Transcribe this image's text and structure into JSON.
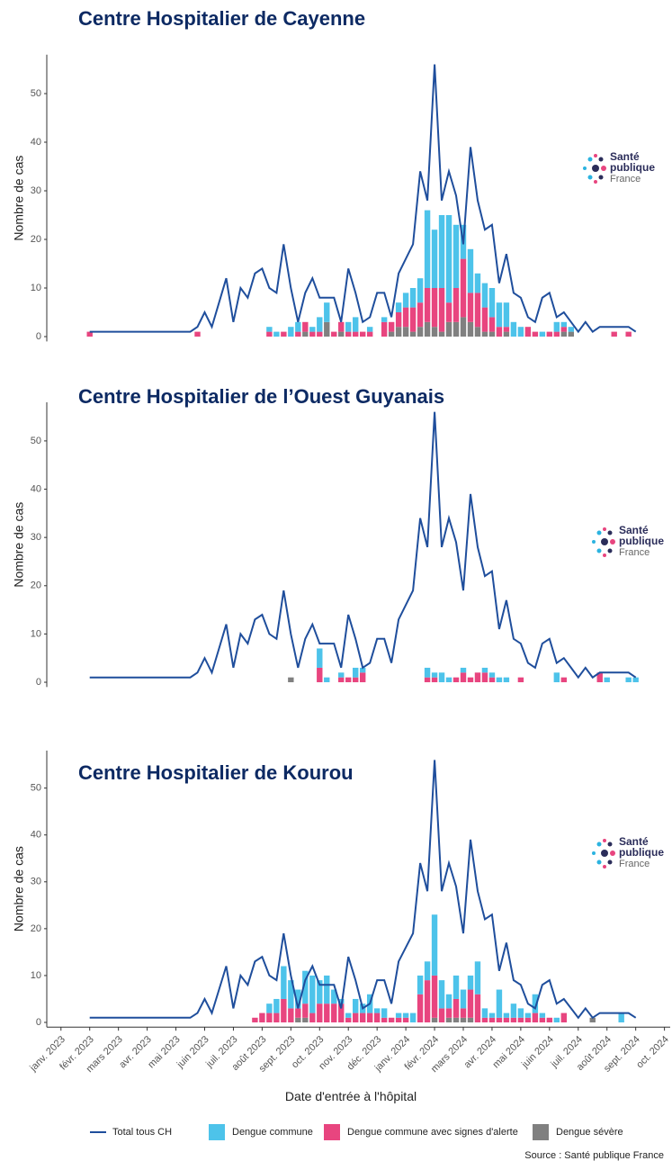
{
  "chart_data": [
    {
      "type": "bar",
      "title": "Centre Hospitalier de Cayenne",
      "y_label": "Nombre de cas",
      "x": [
        1.0,
        4.5,
        4.75,
        5,
        5.25,
        5.5,
        5.75,
        6,
        6.25,
        6.5,
        6.75,
        7,
        7.25,
        7.5,
        7.75,
        8,
        8.25,
        8.5,
        8.75,
        9,
        9.25,
        9.5,
        9.75,
        10,
        10.25,
        10.5,
        10.75,
        11,
        11.25,
        11.5,
        11.75,
        12,
        12.25,
        12.5,
        12.75,
        13,
        13.25,
        13.5,
        13.75,
        14,
        14.25,
        14.5,
        14.75,
        15,
        15.25,
        15.5,
        15.75,
        16,
        16.25,
        16.5,
        16.75,
        17,
        17.25,
        17.5,
        17.75,
        18,
        18.25,
        18.5,
        18.75,
        19,
        19.25,
        19.5,
        19.75,
        20
      ],
      "xlim": [
        -0.4,
        21.2
      ],
      "ylim": [
        -1,
        58
      ],
      "yticks": [
        0,
        10,
        20,
        30,
        40,
        50
      ],
      "series": [
        {
          "name": "Total tous CH",
          "type": "line",
          "color": "#1f4e9c",
          "values": [
            1,
            1,
            2,
            5,
            2,
            7,
            12,
            3,
            10,
            8,
            13,
            14,
            10,
            9,
            19,
            10,
            3,
            9,
            12,
            8,
            8,
            8,
            3,
            14,
            9,
            3,
            4,
            9,
            9,
            4,
            13,
            16,
            19,
            34,
            28,
            56,
            28,
            34,
            29,
            19,
            39,
            28,
            22,
            23,
            11,
            17,
            9,
            8,
            4,
            3,
            8,
            9,
            4,
            5,
            3,
            1,
            3,
            1,
            2,
            2,
            2,
            2,
            2,
            1
          ]
        },
        {
          "name": "Dengue commune",
          "type": "bar",
          "color": "#4dc3ea",
          "values": [
            0,
            0,
            0,
            0,
            0,
            0,
            0,
            0,
            0,
            0,
            0,
            0,
            1,
            1,
            0,
            2,
            2,
            0,
            1,
            3,
            4,
            0,
            0,
            2,
            3,
            0,
            1,
            0,
            1,
            0,
            2,
            3,
            4,
            5,
            16,
            12,
            15,
            18,
            13,
            7,
            9,
            4,
            5,
            6,
            5,
            5,
            3,
            2,
            0,
            0,
            1,
            0,
            2,
            1,
            1,
            0,
            0,
            0,
            0,
            0,
            0,
            0,
            0,
            0
          ]
        },
        {
          "name": "Dengue commune avec signes d'alerte",
          "type": "bar",
          "color": "#e8457f",
          "values": [
            1,
            0,
            1,
            0,
            0,
            0,
            0,
            0,
            0,
            0,
            0,
            0,
            1,
            0,
            1,
            0,
            1,
            2,
            1,
            1,
            0,
            1,
            2,
            1,
            1,
            1,
            1,
            0,
            3,
            2,
            3,
            4,
            5,
            5,
            7,
            8,
            9,
            4,
            7,
            12,
            6,
            7,
            5,
            3,
            2,
            1,
            0,
            0,
            2,
            1,
            0,
            1,
            1,
            1,
            0,
            0,
            0,
            0,
            0,
            0,
            1,
            0,
            1,
            0
          ]
        },
        {
          "name": "Dengue sévère",
          "type": "bar",
          "color": "#808080",
          "values": [
            0,
            0,
            0,
            0,
            0,
            0,
            0,
            0,
            0,
            0,
            0,
            0,
            0,
            0,
            0,
            0,
            0,
            1,
            0,
            0,
            3,
            0,
            1,
            0,
            0,
            0,
            0,
            0,
            0,
            1,
            2,
            2,
            1,
            2,
            3,
            2,
            1,
            3,
            3,
            4,
            3,
            2,
            1,
            1,
            0,
            1,
            0,
            0,
            0,
            0,
            0,
            0,
            0,
            1,
            1,
            0,
            0,
            0,
            0,
            0,
            0,
            0,
            0,
            0
          ]
        }
      ]
    },
    {
      "type": "bar",
      "title": "Centre Hospitalier de l’Ouest Guyanais",
      "y_label": "Nombre de cas",
      "x": [
        1.0,
        4.5,
        4.75,
        5,
        5.25,
        5.5,
        5.75,
        6,
        6.25,
        6.5,
        6.75,
        7,
        7.25,
        7.5,
        7.75,
        8,
        8.25,
        8.5,
        8.75,
        9,
        9.25,
        9.5,
        9.75,
        10,
        10.25,
        10.5,
        10.75,
        11,
        11.25,
        11.5,
        11.75,
        12,
        12.25,
        12.5,
        12.75,
        13,
        13.25,
        13.5,
        13.75,
        14,
        14.25,
        14.5,
        14.75,
        15,
        15.25,
        15.5,
        15.75,
        16,
        16.25,
        16.5,
        16.75,
        17,
        17.25,
        17.5,
        17.75,
        18,
        18.25,
        18.5,
        18.75,
        19,
        19.25,
        19.5,
        19.75,
        20
      ],
      "xlim": [
        -0.4,
        21.2
      ],
      "ylim": [
        -1,
        58
      ],
      "yticks": [
        0,
        10,
        20,
        30,
        40,
        50
      ],
      "series": [
        {
          "name": "Total tous CH",
          "type": "line",
          "color": "#1f4e9c",
          "values": [
            1,
            1,
            2,
            5,
            2,
            7,
            12,
            3,
            10,
            8,
            13,
            14,
            10,
            9,
            19,
            10,
            3,
            9,
            12,
            8,
            8,
            8,
            3,
            14,
            9,
            3,
            4,
            9,
            9,
            4,
            13,
            16,
            19,
            34,
            28,
            56,
            28,
            34,
            29,
            19,
            39,
            28,
            22,
            23,
            11,
            17,
            9,
            8,
            4,
            3,
            8,
            9,
            4,
            5,
            3,
            1,
            3,
            1,
            2,
            2,
            2,
            2,
            2,
            1
          ]
        },
        {
          "name": "Dengue commune",
          "type": "bar",
          "color": "#4dc3ea",
          "values": [
            0,
            0,
            0,
            0,
            0,
            0,
            0,
            0,
            0,
            0,
            0,
            0,
            0,
            0,
            0,
            0,
            0,
            0,
            0,
            4,
            1,
            0,
            1,
            0,
            2,
            1,
            0,
            0,
            0,
            0,
            0,
            0,
            0,
            0,
            2,
            1,
            2,
            1,
            0,
            1,
            0,
            0,
            1,
            1,
            1,
            1,
            0,
            0,
            0,
            0,
            0,
            0,
            2,
            0,
            0,
            0,
            0,
            0,
            0,
            1,
            0,
            0,
            1,
            1
          ]
        },
        {
          "name": "Dengue commune avec signes d'alerte",
          "type": "bar",
          "color": "#e8457f",
          "values": [
            0,
            0,
            0,
            0,
            0,
            0,
            0,
            0,
            0,
            0,
            0,
            0,
            0,
            0,
            0,
            0,
            0,
            0,
            0,
            3,
            0,
            0,
            1,
            1,
            1,
            2,
            0,
            0,
            0,
            0,
            0,
            0,
            0,
            0,
            1,
            1,
            0,
            0,
            1,
            2,
            1,
            2,
            2,
            1,
            0,
            0,
            0,
            1,
            0,
            0,
            0,
            0,
            0,
            1,
            0,
            0,
            0,
            0,
            2,
            0,
            0,
            0,
            0,
            0
          ]
        },
        {
          "name": "Dengue sévère",
          "type": "bar",
          "color": "#808080",
          "values": [
            0,
            0,
            0,
            0,
            0,
            0,
            0,
            0,
            0,
            0,
            0,
            0,
            0,
            0,
            0,
            1,
            0,
            0,
            0,
            0,
            0,
            0,
            0,
            0,
            0,
            0,
            0,
            0,
            0,
            0,
            0,
            0,
            0,
            0,
            0,
            0,
            0,
            0,
            0,
            0,
            0,
            0,
            0,
            0,
            0,
            0,
            0,
            0,
            0,
            0,
            0,
            0,
            0,
            0,
            0,
            0,
            0,
            0,
            0,
            0,
            0,
            0,
            0,
            0
          ]
        }
      ]
    },
    {
      "type": "bar",
      "title": "Centre Hospitalier de Kourou",
      "y_label": "Nombre de cas",
      "x_label": "Date d'entrée à l'hôpital",
      "x": [
        1.0,
        4.5,
        4.75,
        5,
        5.25,
        5.5,
        5.75,
        6,
        6.25,
        6.5,
        6.75,
        7,
        7.25,
        7.5,
        7.75,
        8,
        8.25,
        8.5,
        8.75,
        9,
        9.25,
        9.5,
        9.75,
        10,
        10.25,
        10.5,
        10.75,
        11,
        11.25,
        11.5,
        11.75,
        12,
        12.25,
        12.5,
        12.75,
        13,
        13.25,
        13.5,
        13.75,
        14,
        14.25,
        14.5,
        14.75,
        15,
        15.25,
        15.5,
        15.75,
        16,
        16.25,
        16.5,
        16.75,
        17,
        17.25,
        17.5,
        17.75,
        18,
        18.25,
        18.5,
        18.75,
        19,
        19.25,
        19.5,
        19.75,
        20
      ],
      "xlim": [
        -0.4,
        21.2
      ],
      "ylim": [
        -1,
        58
      ],
      "yticks": [
        0,
        10,
        20,
        30,
        40,
        50
      ],
      "xticks": [
        {
          "value": 0,
          "label": "janv. 2023"
        },
        {
          "value": 1,
          "label": "févr. 2023"
        },
        {
          "value": 2,
          "label": "mars 2023"
        },
        {
          "value": 3,
          "label": "avr. 2023"
        },
        {
          "value": 4,
          "label": "mai 2023"
        },
        {
          "value": 5,
          "label": "juin 2023"
        },
        {
          "value": 6,
          "label": "juil. 2023"
        },
        {
          "value": 7,
          "label": "août 2023"
        },
        {
          "value": 8,
          "label": "sept. 2023"
        },
        {
          "value": 9,
          "label": "oct. 2023"
        },
        {
          "value": 10,
          "label": "nov. 2023"
        },
        {
          "value": 11,
          "label": "déc. 2023"
        },
        {
          "value": 12,
          "label": "janv. 2024"
        },
        {
          "value": 13,
          "label": "févr. 2024"
        },
        {
          "value": 14,
          "label": "mars 2024"
        },
        {
          "value": 15,
          "label": "avr. 2024"
        },
        {
          "value": 16,
          "label": "mai 2024"
        },
        {
          "value": 17,
          "label": "juin 2024"
        },
        {
          "value": 18,
          "label": "juil. 2024"
        },
        {
          "value": 19,
          "label": "août 2024"
        },
        {
          "value": 20,
          "label": "sept. 2024"
        },
        {
          "value": 21,
          "label": "oct. 2024"
        }
      ],
      "series": [
        {
          "name": "Total tous CH",
          "type": "line",
          "color": "#1f4e9c",
          "values": [
            1,
            1,
            2,
            5,
            2,
            7,
            12,
            3,
            10,
            8,
            13,
            14,
            10,
            9,
            19,
            10,
            3,
            9,
            12,
            8,
            8,
            8,
            3,
            14,
            9,
            3,
            4,
            9,
            9,
            4,
            13,
            16,
            19,
            34,
            28,
            56,
            28,
            34,
            29,
            19,
            39,
            28,
            22,
            23,
            11,
            17,
            9,
            8,
            4,
            3,
            8,
            9,
            4,
            5,
            3,
            1,
            3,
            1,
            2,
            2,
            2,
            2,
            2,
            1
          ]
        },
        {
          "name": "Dengue commune",
          "type": "bar",
          "color": "#4dc3ea",
          "values": [
            0,
            0,
            0,
            0,
            0,
            0,
            0,
            0,
            0,
            0,
            0,
            0,
            2,
            3,
            7,
            6,
            4,
            7,
            8,
            5,
            6,
            3,
            1,
            1,
            3,
            2,
            4,
            1,
            2,
            0,
            1,
            1,
            2,
            4,
            4,
            13,
            6,
            3,
            5,
            4,
            3,
            7,
            2,
            1,
            6,
            1,
            3,
            2,
            1,
            4,
            1,
            0,
            1,
            0,
            0,
            0,
            0,
            0,
            0,
            0,
            0,
            2,
            0,
            0
          ]
        },
        {
          "name": "Dengue commune avec signes d'alerte",
          "type": "bar",
          "color": "#e8457f",
          "values": [
            0,
            0,
            0,
            0,
            0,
            0,
            0,
            0,
            0,
            0,
            1,
            2,
            2,
            2,
            5,
            3,
            2,
            3,
            2,
            4,
            4,
            4,
            4,
            1,
            2,
            2,
            2,
            2,
            1,
            1,
            1,
            1,
            0,
            6,
            9,
            9,
            3,
            2,
            4,
            2,
            6,
            6,
            1,
            1,
            1,
            1,
            1,
            1,
            1,
            2,
            1,
            1,
            0,
            2,
            0,
            0,
            0,
            0,
            0,
            0,
            0,
            0,
            0,
            0
          ]
        },
        {
          "name": "Dengue sévère",
          "type": "bar",
          "color": "#808080",
          "values": [
            0,
            0,
            0,
            0,
            0,
            0,
            0,
            0,
            0,
            0,
            0,
            0,
            0,
            0,
            0,
            0,
            1,
            1,
            0,
            0,
            0,
            0,
            0,
            0,
            0,
            0,
            0,
            0,
            0,
            0,
            0,
            0,
            0,
            0,
            0,
            1,
            0,
            1,
            1,
            1,
            1,
            0,
            0,
            0,
            0,
            0,
            0,
            0,
            0,
            0,
            0,
            0,
            0,
            0,
            0,
            0,
            0,
            1,
            0,
            0,
            0,
            0,
            0,
            0
          ]
        }
      ]
    }
  ],
  "logo": [
    "Santé",
    "publique",
    "France"
  ],
  "source": "Source : Santé publique France"
}
